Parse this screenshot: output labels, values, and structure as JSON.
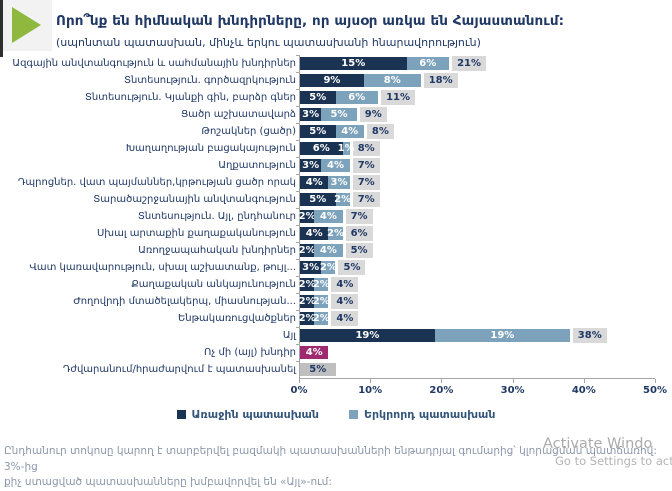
{
  "header": {
    "title": "Որո՞նք են հիմնական խնդիրները, որ այսօր առկա են Հայաստանում:",
    "subtitle": "(սպոնտան պատասխան, մինչև երկու պատասխանի հնարավորություն)"
  },
  "chart_data": {
    "type": "bar",
    "orientation": "horizontal",
    "stacked": true,
    "title": "Որո՞նք են հիմնական խնդիրները, որ այսօր առկա են Հայաստանում:",
    "xlabel": "",
    "ylabel": "",
    "xlim": [
      0,
      50
    ],
    "x_ticks": [
      "0%",
      "10%",
      "20%",
      "30%",
      "40%",
      "50%"
    ],
    "grid": false,
    "legend_position": "bottom",
    "legend": [
      {
        "key": "first",
        "label": "Առաջին պատասխան"
      },
      {
        "key": "second",
        "label": "Երկրորդ պատասխան"
      }
    ],
    "colors": {
      "first": "#1a3353",
      "second": "#7da3bc",
      "none": "#9e2a70",
      "refuse": "#bfbfbf",
      "total_bg": "#d9d9d9",
      "axis": "#a6a6a6",
      "accent_green": "#8fb83e",
      "title_navy": "#1f3864"
    },
    "rows": [
      {
        "label": "Ազգային անվտանգություն և սահմանային խնդիրներ",
        "segments": [
          {
            "key": "first",
            "value": 15,
            "text": "15%"
          },
          {
            "key": "second",
            "value": 6,
            "text": "6%"
          }
        ],
        "total": "21%"
      },
      {
        "label": "Տնտեսություն. գործազրկություն",
        "segments": [
          {
            "key": "first",
            "value": 9,
            "text": "9%"
          },
          {
            "key": "second",
            "value": 8,
            "text": "8%"
          }
        ],
        "total": "18%"
      },
      {
        "label": "Տնտեսություն. Կյանքի գին, բարձր գներ",
        "segments": [
          {
            "key": "first",
            "value": 5,
            "text": "5%"
          },
          {
            "key": "second",
            "value": 6,
            "text": "6%"
          }
        ],
        "total": "11%"
      },
      {
        "label": "Ցածր աշխատավարձ",
        "segments": [
          {
            "key": "first",
            "value": 3,
            "text": "3%"
          },
          {
            "key": "second",
            "value": 5,
            "text": "5%"
          }
        ],
        "total": "9%"
      },
      {
        "label": "Թոշակներ (ցածր)",
        "segments": [
          {
            "key": "first",
            "value": 5,
            "text": "5%"
          },
          {
            "key": "second",
            "value": 4,
            "text": "4%"
          }
        ],
        "total": "8%"
      },
      {
        "label": "Խաղաղության բացակայություն",
        "segments": [
          {
            "key": "first",
            "value": 6,
            "text": "6%"
          },
          {
            "key": "second",
            "value": 1,
            "text": "1%"
          }
        ],
        "total": "8%"
      },
      {
        "label": "Աղքատություն",
        "segments": [
          {
            "key": "first",
            "value": 3,
            "text": "3%"
          },
          {
            "key": "second",
            "value": 4,
            "text": "4%"
          }
        ],
        "total": "7%"
      },
      {
        "label": "Դպրոցներ. վատ պայմաններ,կրթության ցածր որակ",
        "segments": [
          {
            "key": "first",
            "value": 4,
            "text": "4%"
          },
          {
            "key": "second",
            "value": 3,
            "text": "3%"
          }
        ],
        "total": "7%"
      },
      {
        "label": "Տարածաշրջանային անվտանգություն",
        "segments": [
          {
            "key": "first",
            "value": 5,
            "text": "5%"
          },
          {
            "key": "second",
            "value": 2,
            "text": "2%"
          }
        ],
        "total": "7%"
      },
      {
        "label": "Տնտեսություն. Այլ, ընդհանուր",
        "segments": [
          {
            "key": "first",
            "value": 2,
            "text": "2%"
          },
          {
            "key": "second",
            "value": 4,
            "text": "4%"
          }
        ],
        "total": "7%"
      },
      {
        "label": "Սխալ արտաքին քաղաքականություն",
        "segments": [
          {
            "key": "first",
            "value": 4,
            "text": "4%"
          },
          {
            "key": "second",
            "value": 2,
            "text": "2%"
          }
        ],
        "total": "6%"
      },
      {
        "label": "Առողջապահական խնդիրներ",
        "segments": [
          {
            "key": "first",
            "value": 2,
            "text": "2%"
          },
          {
            "key": "second",
            "value": 4,
            "text": "4%"
          }
        ],
        "total": "5%"
      },
      {
        "label": "Վատ կառավարություն, սխալ աշխատանք, թույլ...",
        "segments": [
          {
            "key": "first",
            "value": 3,
            "text": "3%"
          },
          {
            "key": "second",
            "value": 2,
            "text": "2%"
          }
        ],
        "total": "5%"
      },
      {
        "label": "Քաղաքական անկայունություն",
        "segments": [
          {
            "key": "first",
            "value": 2,
            "text": "2%"
          },
          {
            "key": "second",
            "value": 2,
            "text": "2%"
          }
        ],
        "total": "4%"
      },
      {
        "label": "Ժողովրդի մտածելակերպ, միասնության...",
        "segments": [
          {
            "key": "first",
            "value": 2,
            "text": "2%"
          },
          {
            "key": "second",
            "value": 2,
            "text": "2%"
          }
        ],
        "total": "4%"
      },
      {
        "label": "Ենթակառուցվածքներ",
        "segments": [
          {
            "key": "first",
            "value": 2,
            "text": "2%"
          },
          {
            "key": "second",
            "value": 2,
            "text": "2%"
          }
        ],
        "total": "4%"
      },
      {
        "label": "Այլ",
        "segments": [
          {
            "key": "first",
            "value": 19,
            "text": "19%"
          },
          {
            "key": "second",
            "value": 19,
            "text": "19%"
          }
        ],
        "total": "38%"
      },
      {
        "label": "Ոչ մի (այլ) խնդիր",
        "segments": [
          {
            "key": "none",
            "value": 4,
            "text": "4%"
          }
        ],
        "total": null
      },
      {
        "label": "Դժվարանում/հրաժարվում է պատասխանել",
        "segments": [
          {
            "key": "refuse",
            "value": 5,
            "text": "5%"
          }
        ],
        "total": null
      }
    ]
  },
  "footnote": {
    "line1": "Ընդհանուր տոկոսը կարող է տարբերվել բազմակի պատասխանների ենթադրյալ գումարից՝ կլորացման պատճառով: 3%-ից",
    "line2": "քիչ ստացված պատասխանները խմբավորվել են «Այլ»-ում:"
  },
  "watermark": {
    "line1": "Activate Windo",
    "line2": "Go to Settings to act"
  }
}
